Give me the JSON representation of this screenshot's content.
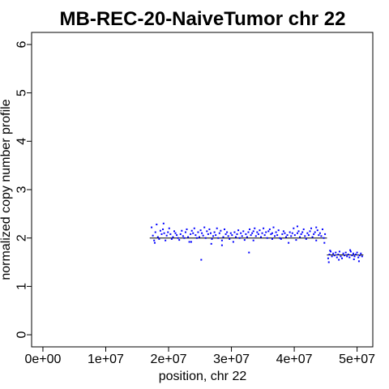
{
  "chart_data": {
    "type": "scatter",
    "title": "MB-REC-20-NaiveTumor chr 22",
    "xlabel": "position, chr 22",
    "ylabel": "normalized copy number profile",
    "xlim": [
      -1800000,
      52500000
    ],
    "ylim": [
      -0.25,
      6.25
    ],
    "x_ticks": [
      0,
      10000000,
      20000000,
      30000000,
      40000000,
      50000000
    ],
    "x_tick_labels": [
      "0e+00",
      "1e+07",
      "2e+07",
      "3e+07",
      "4e+07",
      "5e+07"
    ],
    "y_ticks": [
      0,
      1,
      2,
      3,
      4,
      5,
      6
    ],
    "y_tick_labels": [
      "0",
      "1",
      "2",
      "3",
      "4",
      "5",
      "6"
    ],
    "grid": false,
    "point_color": "#0000ff",
    "segment_color": "#000000",
    "segments": [
      {
        "x0": 17000000,
        "x1": 45200000,
        "y": 2.0
      },
      {
        "x0": 45200000,
        "x1": 51000000,
        "y": 1.65
      }
    ],
    "series": [
      {
        "x": [
          17300000,
          17500000,
          17700000,
          17900000,
          18100000,
          18300000,
          18500000,
          18700000,
          18900000,
          19100000,
          19300000,
          19500000,
          19700000,
          19900000,
          20100000,
          20300000,
          20500000,
          20700000,
          20900000,
          21100000,
          21300000,
          21500000,
          21700000,
          21900000,
          22100000,
          22300000,
          22500000,
          22700000,
          22900000,
          23100000,
          23300000,
          23500000,
          23700000,
          23900000,
          24100000,
          24300000,
          24500000,
          24700000,
          24900000,
          25100000,
          25300000,
          25500000,
          25700000,
          25900000,
          26100000,
          26300000,
          26500000,
          26700000,
          26900000,
          27100000,
          27300000,
          27500000,
          27700000,
          27900000,
          28100000,
          28300000,
          28500000,
          28700000,
          28900000,
          29100000,
          29300000,
          29500000,
          29700000,
          29900000,
          30100000,
          30300000,
          30500000,
          30700000,
          30900000,
          31100000,
          31300000,
          31500000,
          31700000,
          31900000,
          32100000,
          32300000,
          32500000,
          32700000,
          32900000,
          33100000,
          33300000,
          33500000,
          33700000,
          33900000,
          34100000,
          34300000,
          34500000,
          34700000,
          34900000,
          35100000,
          35300000,
          35500000,
          35700000,
          35900000,
          36100000,
          36300000,
          36500000,
          36700000,
          36900000,
          37100000,
          37300000,
          37500000,
          37700000,
          37900000,
          38100000,
          38300000,
          38500000,
          38700000,
          38900000,
          39100000,
          39300000,
          39500000,
          39700000,
          39900000,
          40100000,
          40300000,
          40500000,
          40700000,
          40900000,
          41100000,
          41300000,
          41500000,
          41700000,
          41900000,
          42100000,
          42300000,
          42500000,
          42700000,
          42900000,
          43100000,
          43300000,
          43500000,
          43700000,
          43900000,
          44100000,
          44300000,
          44500000,
          44700000,
          44900000,
          25200000,
          32800000,
          17800000,
          19200000,
          23600000,
          26800000,
          28500000,
          33500000,
          36500000,
          40500000,
          43500000,
          44800000
        ],
        "values": [
          2.22,
          2.05,
          1.95,
          2.12,
          2.28,
          2.02,
          1.98,
          2.15,
          2.08,
          2.18,
          2.1,
          1.95,
          2.05,
          2.12,
          2.2,
          2.08,
          1.98,
          2.02,
          2.14,
          2.1,
          2.06,
          2.0,
          1.96,
          2.08,
          2.15,
          2.04,
          2.0,
          2.12,
          2.18,
          2.02,
          1.92,
          2.08,
          2.15,
          2.1,
          2.2,
          2.06,
          2.0,
          2.12,
          2.02,
          2.16,
          2.1,
          2.05,
          2.22,
          2.0,
          2.14,
          2.08,
          2.18,
          2.1,
          1.98,
          2.04,
          2.12,
          2.06,
          2.2,
          2.0,
          2.1,
          2.15,
          1.95,
          2.02,
          2.18,
          2.08,
          2.12,
          2.04,
          1.98,
          2.1,
          2.06,
          1.92,
          2.12,
          2.02,
          2.08,
          2.16,
          2.0,
          2.1,
          2.04,
          2.14,
          1.96,
          2.08,
          2.02,
          2.12,
          2.18,
          2.06,
          2.1,
          2.14,
          2.2,
          2.04,
          2.12,
          2.08,
          2.16,
          2.02,
          2.1,
          2.2,
          2.06,
          2.12,
          2.0,
          2.14,
          2.18,
          2.08,
          2.1,
          2.22,
          2.04,
          2.12,
          2.06,
          2.16,
          2.0,
          1.98,
          2.08,
          2.14,
          2.1,
          2.02,
          2.06,
          1.9,
          2.12,
          2.04,
          2.1,
          2.2,
          2.06,
          1.96,
          2.1,
          2.14,
          2.02,
          2.08,
          2.12,
          2.18,
          2.04,
          1.98,
          2.1,
          2.06,
          2.14,
          2.2,
          2.02,
          2.08,
          2.12,
          1.95,
          2.16,
          2.06,
          2.1,
          2.04,
          2.18,
          2.0,
          2.08,
          1.55,
          1.7,
          1.9,
          2.3,
          1.92,
          1.88,
          1.85,
          1.95,
          1.98,
          2.24,
          2.22,
          1.9
        ]
      },
      {
        "x": [
          45400000,
          45600000,
          45800000,
          46000000,
          46200000,
          46400000,
          46600000,
          46800000,
          47000000,
          47200000,
          47400000,
          47600000,
          47800000,
          48000000,
          48200000,
          48400000,
          48600000,
          48800000,
          49000000,
          49200000,
          49400000,
          49600000,
          49800000,
          50000000,
          50200000,
          50400000,
          50600000,
          50800000,
          45500000,
          47100000,
          48900000,
          50300000,
          45700000,
          49500000
        ],
        "values": [
          1.58,
          1.66,
          1.72,
          1.62,
          1.68,
          1.64,
          1.7,
          1.6,
          1.66,
          1.72,
          1.62,
          1.58,
          1.68,
          1.64,
          1.7,
          1.62,
          1.66,
          1.6,
          1.72,
          1.64,
          1.68,
          1.62,
          1.66,
          1.7,
          1.6,
          1.64,
          1.68,
          1.62,
          1.5,
          1.55,
          1.75,
          1.52,
          1.74,
          1.56
        ]
      }
    ]
  }
}
